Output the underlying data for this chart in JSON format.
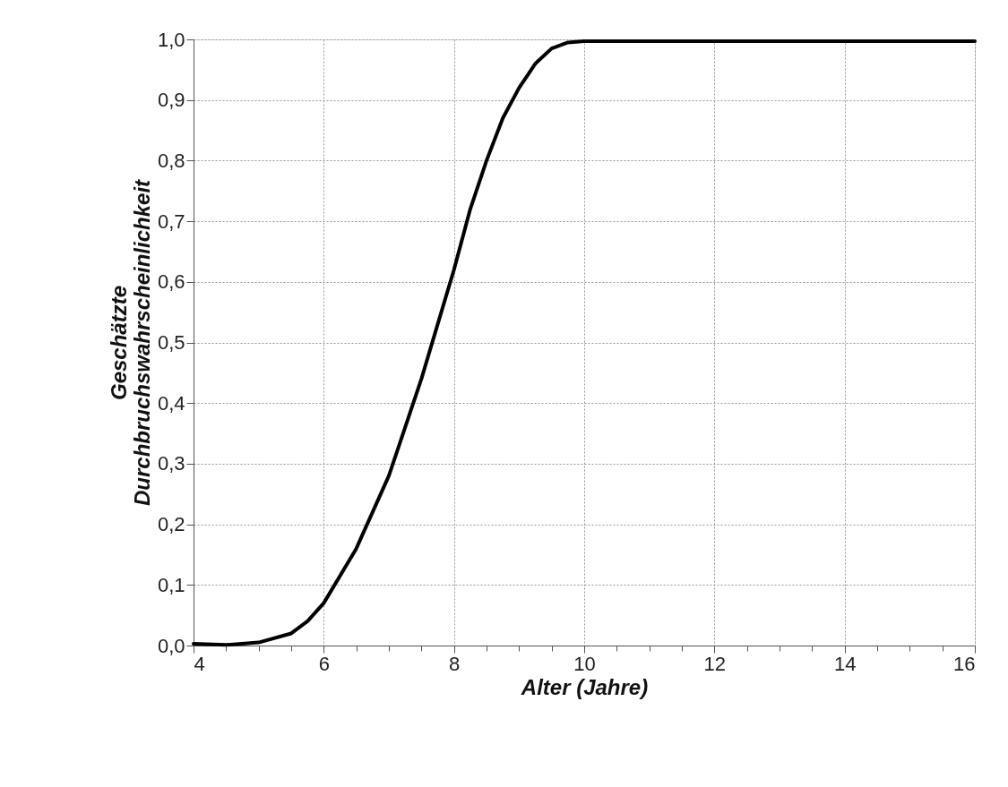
{
  "chart_data": {
    "type": "line",
    "xlabel": "Alter (Jahre)",
    "ylabel": "Geschätzte\nDurchbruchswahrscheinlichkeit",
    "x": [
      4,
      4.5,
      5,
      5.5,
      5.75,
      6,
      6.5,
      7,
      7.25,
      7.5,
      7.75,
      8,
      8.25,
      8.5,
      8.75,
      9,
      9.25,
      9.5,
      9.75,
      10,
      12,
      16
    ],
    "series": [
      {
        "color": "#000000",
        "values": [
          0.003,
          0.001,
          0.005,
          0.02,
          0.04,
          0.07,
          0.16,
          0.28,
          0.36,
          0.44,
          0.53,
          0.62,
          0.72,
          0.8,
          0.87,
          0.92,
          0.96,
          0.985,
          0.995,
          0.997,
          0.997,
          0.997
        ]
      }
    ],
    "xlim": [
      4,
      16
    ],
    "ylim": [
      0,
      1
    ],
    "xticks": [
      4,
      {
        "value": 4.5,
        "label": null
      },
      {
        "value": 5,
        "label": null
      },
      {
        "value": 5.5,
        "label": null
      },
      6,
      {
        "value": 6.5,
        "label": null
      },
      {
        "value": 7,
        "label": null
      },
      {
        "value": 7.5,
        "label": null
      },
      8,
      {
        "value": 8.5,
        "label": null
      },
      {
        "value": 9,
        "label": null
      },
      {
        "value": 9.5,
        "label": null
      },
      10,
      {
        "value": 10.5,
        "label": null
      },
      {
        "value": 11,
        "label": null
      },
      {
        "value": 11.5,
        "label": null
      },
      12,
      {
        "value": 12.5,
        "label": null
      },
      {
        "value": 13,
        "label": null
      },
      {
        "value": 13.5,
        "label": null
      },
      14,
      {
        "value": 14.5,
        "label": null
      },
      {
        "value": 15,
        "label": null
      },
      {
        "value": 15.5,
        "label": null
      },
      16
    ],
    "yticks": [
      {
        "value": 0,
        "label": "0,0"
      },
      {
        "value": 0.1,
        "label": "0,1"
      },
      {
        "value": 0.2,
        "label": "0,2"
      },
      {
        "value": 0.3,
        "label": "0,3"
      },
      {
        "value": 0.4,
        "label": "0,4"
      },
      {
        "value": 0.5,
        "label": "0,5"
      },
      {
        "value": 0.6,
        "label": "0,6"
      },
      {
        "value": 0.7,
        "label": "0,7"
      },
      {
        "value": 0.8,
        "label": "0,8"
      },
      {
        "value": 0.9,
        "label": "0,9"
      },
      {
        "value": 1,
        "label": "1,0"
      }
    ],
    "grid": true,
    "line_style": "solid",
    "marker": "none"
  }
}
